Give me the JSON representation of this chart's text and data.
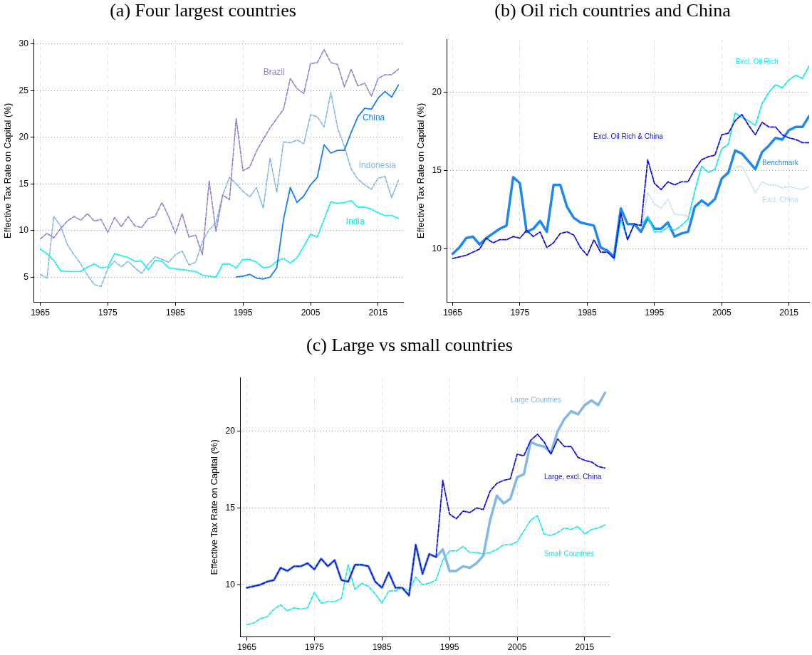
{
  "chart_data": [
    {
      "type": "line",
      "title": "(a) Four largest countries",
      "ylabel": "Effective Tax Rate on Capital (%)",
      "x": [
        1965,
        1966,
        1967,
        1968,
        1969,
        1970,
        1971,
        1972,
        1973,
        1974,
        1975,
        1976,
        1977,
        1978,
        1979,
        1980,
        1981,
        1982,
        1983,
        1984,
        1985,
        1986,
        1987,
        1988,
        1989,
        1990,
        1991,
        1992,
        1993,
        1994,
        1995,
        1996,
        1997,
        1998,
        1999,
        2000,
        2001,
        2002,
        2003,
        2004,
        2005,
        2006,
        2007,
        2008,
        2009,
        2010,
        2011,
        2012,
        2013,
        2014,
        2015,
        2016,
        2017,
        2018
      ],
      "xlim": [
        1964.1,
        2018.7
      ],
      "xticks": [
        1965,
        1975,
        1985,
        1995,
        2005,
        2015
      ],
      "ylim": [
        2.3,
        30.5
      ],
      "yticks": [
        5,
        10,
        15,
        20,
        25,
        30
      ],
      "grid": true,
      "series": [
        {
          "name": "Brazil",
          "color": "#9080d0",
          "line_style": "dashed",
          "values": [
            9.1,
            9.7,
            9.2,
            10.2,
            11.0,
            11.5,
            11.1,
            11.8,
            11.0,
            11.2,
            9.8,
            11.4,
            10.4,
            11.5,
            10.5,
            10.3,
            11.3,
            11.5,
            13.0,
            11.5,
            9.7,
            11.8,
            9.3,
            9.5,
            7.4,
            15.3,
            9.9,
            13.8,
            13.3,
            22.0,
            16.4,
            16.8,
            18.5,
            19.8,
            21.0,
            22.0,
            23.0,
            26.3,
            25.2,
            24.7,
            27.9,
            28.0,
            29.4,
            28.0,
            27.8,
            25.4,
            27.3,
            25.5,
            25.8,
            24.4,
            26.3,
            26.7,
            26.7,
            27.3
          ]
        },
        {
          "name": "China",
          "color": "#1a80f0",
          "line_style": "solid",
          "values": [
            null,
            null,
            null,
            null,
            null,
            null,
            null,
            null,
            null,
            null,
            null,
            null,
            null,
            null,
            null,
            null,
            null,
            null,
            null,
            null,
            null,
            null,
            null,
            null,
            null,
            null,
            null,
            null,
            null,
            5.0,
            5.1,
            5.3,
            4.9,
            4.8,
            5.0,
            6.0,
            11.2,
            14.6,
            13.0,
            13.7,
            14.9,
            15.7,
            19.2,
            18.3,
            18.6,
            18.6,
            20.5,
            22.2,
            23.1,
            23.0,
            24.2,
            24.9,
            24.3,
            25.6
          ]
        },
        {
          "name": "Indonesia",
          "color": "#80b8e8",
          "line_style": "dashed",
          "values": [
            5.3,
            4.9,
            11.5,
            10.5,
            8.5,
            7.4,
            6.4,
            5.2,
            4.2,
            4.0,
            5.9,
            6.7,
            6.1,
            6.7,
            6.0,
            5.4,
            6.4,
            7.2,
            6.9,
            6.6,
            7.4,
            7.8,
            6.3,
            6.6,
            8.8,
            10.1,
            10.8,
            13.8,
            15.7,
            15.0,
            14.2,
            13.6,
            14.6,
            12.4,
            17.8,
            14.1,
            19.5,
            19.4,
            19.7,
            19.3,
            22.4,
            22.2,
            21.1,
            24.8,
            21.0,
            19.0,
            16.6,
            15.5,
            14.9,
            14.4,
            15.6,
            15.8,
            13.5,
            15.4
          ]
        },
        {
          "name": "India",
          "color": "#00eef0",
          "line_style": "dotted",
          "values": [
            8.0,
            7.5,
            6.8,
            5.7,
            5.6,
            5.6,
            5.6,
            6.1,
            6.4,
            6.0,
            6.1,
            7.5,
            7.3,
            7.1,
            6.7,
            6.7,
            5.8,
            6.8,
            6.7,
            6.0,
            5.9,
            5.8,
            5.7,
            5.6,
            5.2,
            5.1,
            5.0,
            6.4,
            6.4,
            6.0,
            6.9,
            6.9,
            6.6,
            6.0,
            6.1,
            6.7,
            7.0,
            6.5,
            7.1,
            8.3,
            9.6,
            9.3,
            11.2,
            13.1,
            12.9,
            13.0,
            13.2,
            12.5,
            12.5,
            12.3,
            11.9,
            11.6,
            11.6,
            11.3
          ]
        }
      ]
    },
    {
      "type": "line",
      "title": "(b) Oil rich countries and China",
      "ylabel": "Effective Tax Rate on Capital (%)",
      "x": [
        1965,
        1966,
        1967,
        1968,
        1969,
        1970,
        1971,
        1972,
        1973,
        1974,
        1975,
        1976,
        1977,
        1978,
        1979,
        1980,
        1981,
        1982,
        1983,
        1984,
        1985,
        1986,
        1987,
        1988,
        1989,
        1990,
        1991,
        1992,
        1993,
        1994,
        1995,
        1996,
        1997,
        1998,
        1999,
        2000,
        2001,
        2002,
        2003,
        2004,
        2005,
        2006,
        2007,
        2008,
        2009,
        2010,
        2011,
        2012,
        2013,
        2014,
        2015,
        2016,
        2017,
        2018
      ],
      "xlim": [
        1964.2,
        2018
      ],
      "xticks": [
        1965,
        1975,
        1985,
        1995,
        2005,
        2015
      ],
      "ylim": [
        6.6,
        23.4
      ],
      "yticks": [
        10,
        15,
        20
      ],
      "grid": true,
      "series": [
        {
          "name": "Excl. Oil Rich & China",
          "color": "#1010e0",
          "line_style": "dashed",
          "values": [
            9.4,
            9.5,
            9.6,
            9.8,
            10.0,
            10.7,
            10.4,
            10.6,
            10.6,
            10.8,
            10.7,
            11.2,
            10.8,
            11.1,
            10.1,
            10.4,
            11.0,
            11.1,
            10.9,
            10.1,
            9.6,
            10.6,
            9.8,
            9.8,
            9.4,
            12.3,
            10.6,
            11.6,
            11.5,
            15.7,
            14.2,
            13.8,
            14.3,
            14.1,
            14.3,
            14.3,
            15.1,
            15.7,
            15.9,
            16.0,
            17.3,
            17.4,
            18.2,
            18.6,
            17.9,
            17.3,
            18.1,
            17.8,
            17.8,
            17.3,
            17.1,
            17.0,
            16.8,
            16.8
          ]
        },
        {
          "name": "Excl. Oil Rich",
          "color": "#10e8f0",
          "line_style": "dashed",
          "values": [
            null,
            null,
            null,
            null,
            null,
            null,
            null,
            null,
            null,
            null,
            null,
            null,
            null,
            null,
            null,
            null,
            null,
            null,
            null,
            null,
            null,
            null,
            null,
            null,
            9.3,
            11.9,
            10.6,
            11.6,
            11.5,
            12.1,
            11.1,
            11.1,
            11.4,
            11.2,
            11.5,
            11.9,
            13.7,
            15.3,
            14.9,
            15.1,
            16.4,
            16.7,
            18.7,
            18.4,
            18.2,
            17.9,
            19.3,
            20.0,
            20.5,
            20.3,
            20.8,
            21.1,
            20.9,
            21.7
          ]
        },
        {
          "name": "Benchmark",
          "color": "#1e88f0",
          "line_style": "solid",
          "values": [
            9.7,
            10.1,
            10.7,
            10.8,
            10.3,
            10.7,
            11.0,
            11.3,
            11.5,
            14.6,
            14.2,
            11.1,
            11.3,
            11.8,
            11.1,
            14.1,
            14.1,
            12.7,
            12.0,
            11.7,
            11.6,
            11.5,
            10.1,
            9.9,
            9.5,
            12.6,
            11.6,
            11.6,
            11.1,
            12.0,
            11.3,
            11.3,
            11.7,
            10.8,
            11.0,
            11.1,
            12.7,
            13.1,
            12.8,
            13.2,
            14.5,
            14.9,
            16.3,
            16.1,
            15.6,
            15.1,
            16.2,
            16.6,
            17.1,
            17.0,
            17.6,
            17.8,
            17.8,
            18.5
          ]
        },
        {
          "name": "Excl. China",
          "color": "#b8d8f0",
          "line_style": "dotted",
          "values": [
            null,
            null,
            null,
            null,
            null,
            null,
            null,
            null,
            null,
            null,
            null,
            null,
            null,
            null,
            null,
            null,
            null,
            null,
            null,
            null,
            null,
            null,
            null,
            null,
            null,
            null,
            null,
            null,
            11.1,
            13.6,
            12.9,
            12.6,
            13.2,
            12.2,
            12.2,
            12.1,
            12.8,
            12.8,
            12.7,
            13.3,
            14.5,
            14.8,
            15.2,
            15.3,
            14.5,
            13.6,
            14.3,
            14.1,
            14.1,
            13.9,
            14.0,
            13.9,
            13.8,
            14.0
          ]
        }
      ]
    },
    {
      "type": "line",
      "title": "(c) Large vs small countries",
      "ylabel": "Effective Tax Rate on Capital (%)",
      "x": [
        1965,
        1966,
        1967,
        1968,
        1969,
        1970,
        1971,
        1972,
        1973,
        1974,
        1975,
        1976,
        1977,
        1978,
        1979,
        1980,
        1981,
        1982,
        1983,
        1984,
        1985,
        1986,
        1987,
        1988,
        1989,
        1990,
        1991,
        1992,
        1993,
        1994,
        1995,
        1996,
        1997,
        1998,
        1999,
        2000,
        2001,
        2002,
        2003,
        2004,
        2005,
        2006,
        2007,
        2008,
        2009,
        2010,
        2011,
        2012,
        2013,
        2014,
        2015,
        2016,
        2017,
        2018
      ],
      "xlim": [
        1964.1,
        2018.7
      ],
      "xticks": [
        1965,
        1975,
        1985,
        1995,
        2005,
        2015
      ],
      "ylim": [
        6.6,
        23.5
      ],
      "yticks": [
        10,
        15,
        20
      ],
      "grid": true,
      "series": [
        {
          "name": "Large, excl. China",
          "color": "#1010e0",
          "line_style": "dashed",
          "values": [
            9.8,
            9.9,
            10.0,
            10.2,
            10.3,
            11.1,
            10.9,
            11.2,
            11.2,
            11.4,
            11.0,
            11.7,
            11.2,
            11.6,
            10.3,
            10.2,
            11.3,
            11.3,
            11.2,
            10.2,
            9.8,
            10.8,
            9.8,
            9.8,
            9.3,
            12.6,
            10.7,
            12.0,
            11.8,
            16.8,
            14.6,
            14.3,
            14.8,
            14.7,
            15.0,
            14.9,
            16.1,
            16.6,
            16.8,
            16.9,
            18.5,
            18.4,
            19.4,
            19.8,
            19.3,
            18.5,
            19.5,
            19.0,
            19.0,
            18.3,
            18.1,
            18.0,
            17.7,
            17.6
          ]
        },
        {
          "name": "Large Countries",
          "color": "#80b8e6",
          "line_style": "solid",
          "values": [
            9.8,
            9.9,
            10.0,
            10.2,
            10.3,
            11.1,
            10.9,
            11.2,
            11.2,
            11.4,
            11.0,
            11.7,
            11.2,
            11.6,
            10.3,
            10.2,
            11.3,
            11.3,
            11.2,
            10.2,
            9.8,
            10.8,
            9.8,
            9.8,
            9.3,
            12.6,
            10.7,
            12.0,
            11.8,
            12.3,
            10.9,
            10.9,
            11.2,
            11.1,
            11.4,
            11.9,
            14.2,
            15.8,
            15.3,
            15.6,
            17.0,
            17.2,
            19.3,
            19.1,
            19.0,
            18.6,
            20.0,
            20.8,
            21.3,
            21.1,
            21.7,
            22.0,
            21.7,
            22.5
          ]
        },
        {
          "name": "Small Countries",
          "color": "#10e8f0",
          "line_style": "dashed",
          "values": [
            7.4,
            7.5,
            7.8,
            7.9,
            8.4,
            8.7,
            8.3,
            8.5,
            8.4,
            8.5,
            9.5,
            8.8,
            8.9,
            8.9,
            9.1,
            11.3,
            9.7,
            10.1,
            9.9,
            9.4,
            8.8,
            9.6,
            9.6,
            9.8,
            9.6,
            10.5,
            10.0,
            10.1,
            10.3,
            11.6,
            12.2,
            12.2,
            12.5,
            12.1,
            12.1,
            12.0,
            12.1,
            12.3,
            12.6,
            12.6,
            12.8,
            13.5,
            14.2,
            14.5,
            13.3,
            13.2,
            13.4,
            13.7,
            13.6,
            13.8,
            13.3,
            13.6,
            13.7,
            13.9
          ]
        }
      ]
    }
  ]
}
